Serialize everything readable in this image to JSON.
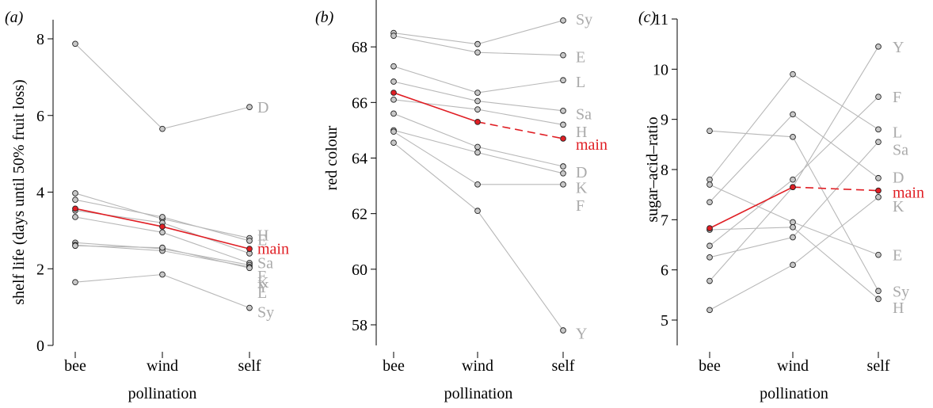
{
  "colors": {
    "grey": "#b8b8b8",
    "red": "#e01e24",
    "point_fill": "#c8c8c8",
    "axis": "#000000"
  },
  "chart_data": [
    {
      "panel_label": "(a)",
      "type": "line",
      "categories": [
        "bee",
        "wind",
        "self"
      ],
      "xlabel": "pollination",
      "ylabel": "shelf life (days until 50% fruit loss)",
      "ylim": [
        0,
        8.5
      ],
      "yticks": [
        0,
        2,
        4,
        6,
        8
      ],
      "series": [
        {
          "name": "D",
          "values": [
            7.87,
            5.65,
            6.22
          ]
        },
        {
          "name": "H",
          "values": [
            3.97,
            3.3,
            2.8
          ]
        },
        {
          "name": "E",
          "values": [
            3.8,
            3.35,
            2.73
          ]
        },
        {
          "name": "main",
          "values": [
            3.57,
            3.1,
            2.52
          ],
          "highlight": true
        },
        {
          "name": "Sa",
          "values": [
            3.52,
            3.2,
            2.4
          ]
        },
        {
          "name": "F",
          "values": [
            3.35,
            2.95,
            2.15
          ]
        },
        {
          "name": "K",
          "values": [
            2.68,
            2.52,
            2.1
          ]
        },
        {
          "name": "Y",
          "values": [
            2.62,
            2.47,
            2.05
          ]
        },
        {
          "name": "L",
          "values": [
            2.6,
            2.55,
            2.02
          ]
        },
        {
          "name": "Sy",
          "values": [
            1.65,
            1.85,
            0.98
          ]
        }
      ],
      "end_labels": [
        {
          "text": "D",
          "value": 6.22
        },
        {
          "text": "H",
          "value": 2.88
        },
        {
          "text": "E",
          "value": 2.76
        },
        {
          "text": "main",
          "value": 2.53,
          "highlight": true
        },
        {
          "text": "Sa",
          "value": 2.16
        },
        {
          "text": "F",
          "value": 1.82
        },
        {
          "text": "K",
          "value": 1.65
        },
        {
          "text": "Y",
          "value": 1.53
        },
        {
          "text": "L",
          "value": 1.38
        },
        {
          "text": "Sy",
          "value": 0.88
        }
      ]
    },
    {
      "panel_label": "(b)",
      "type": "line",
      "categories": [
        "bee",
        "wind",
        "self"
      ],
      "xlabel": "pollination",
      "ylabel": "red colour",
      "ylim": [
        57,
        70
      ],
      "yticks": [
        58,
        60,
        62,
        64,
        66,
        68,
        70
      ],
      "series": [
        {
          "name": "Sy",
          "values": [
            68.5,
            68.1,
            68.95
          ]
        },
        {
          "name": "E",
          "values": [
            68.4,
            67.8,
            67.7
          ]
        },
        {
          "name": "L",
          "values": [
            67.3,
            66.35,
            66.8
          ]
        },
        {
          "name": "Sa",
          "values": [
            66.75,
            66.05,
            65.7
          ]
        },
        {
          "name": "H",
          "values": [
            66.1,
            65.75,
            65.2
          ]
        },
        {
          "name": "main",
          "values": [
            66.35,
            65.3,
            64.7
          ],
          "highlight": true
        },
        {
          "name": "D",
          "values": [
            65.6,
            64.4,
            63.7
          ]
        },
        {
          "name": "K",
          "values": [
            65.0,
            64.2,
            63.45
          ]
        },
        {
          "name": "F",
          "values": [
            64.95,
            63.05,
            63.05
          ]
        },
        {
          "name": "Y",
          "values": [
            64.55,
            62.1,
            57.8
          ]
        }
      ],
      "end_labels": [
        {
          "text": "Sy",
          "value": 69.0
        },
        {
          "text": "E",
          "value": 67.65
        },
        {
          "text": "L",
          "value": 66.75
        },
        {
          "text": "Sa",
          "value": 65.6
        },
        {
          "text": "H",
          "value": 64.95
        },
        {
          "text": "main",
          "value": 64.5,
          "highlight": true
        },
        {
          "text": "D",
          "value": 63.5
        },
        {
          "text": "K",
          "value": 62.95
        },
        {
          "text": "F",
          "value": 62.3
        },
        {
          "text": "Y",
          "value": 57.7
        }
      ]
    },
    {
      "panel_label": "(c)",
      "type": "line",
      "categories": [
        "bee",
        "wind",
        "self"
      ],
      "xlabel": "pollination",
      "ylabel": "sugar–acid–ratio",
      "ylim": [
        4.6,
        11
      ],
      "yticks": [
        5,
        6,
        7,
        8,
        9,
        10,
        11
      ],
      "series": [
        {
          "name": "Y",
          "values": [
            5.78,
            7.65,
            10.45
          ]
        },
        {
          "name": "F",
          "values": [
            6.48,
            7.8,
            9.45
          ]
        },
        {
          "name": "L",
          "values": [
            7.8,
            9.9,
            8.8
          ]
        },
        {
          "name": "Sa",
          "values": [
            6.25,
            6.65,
            8.55
          ]
        },
        {
          "name": "D",
          "values": [
            7.35,
            9.1,
            7.83
          ]
        },
        {
          "name": "main",
          "values": [
            6.83,
            7.65,
            7.58
          ],
          "highlight": true
        },
        {
          "name": "K",
          "values": [
            5.2,
            6.1,
            7.45
          ]
        },
        {
          "name": "E",
          "values": [
            7.7,
            6.95,
            6.3
          ]
        },
        {
          "name": "Sy",
          "values": [
            8.77,
            8.65,
            5.58
          ]
        },
        {
          "name": "H",
          "values": [
            6.8,
            6.85,
            5.42
          ]
        }
      ],
      "end_labels": [
        {
          "text": "Y",
          "value": 10.45
        },
        {
          "text": "F",
          "value": 9.45
        },
        {
          "text": "L",
          "value": 8.75
        },
        {
          "text": "Sa",
          "value": 8.4
        },
        {
          "text": "D",
          "value": 7.85
        },
        {
          "text": "main",
          "value": 7.55,
          "highlight": true
        },
        {
          "text": "K",
          "value": 7.27
        },
        {
          "text": "E",
          "value": 6.3
        },
        {
          "text": "Sy",
          "value": 5.58
        },
        {
          "text": "H",
          "value": 5.25
        }
      ]
    }
  ]
}
